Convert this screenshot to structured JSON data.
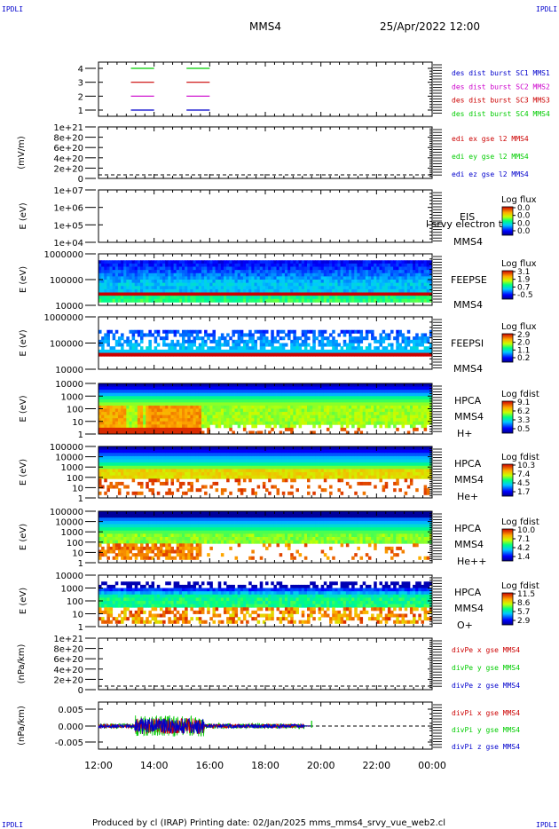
{
  "corner_labels": {
    "top_left": "IPDLI",
    "top_right": "IPDLI",
    "bottom_left": "IPDLI",
    "bottom_right": "IPDLI"
  },
  "header": {
    "title": "MMS4",
    "datetime": "25/Apr/2022 12:00"
  },
  "footer": {
    "text": "Produced by cl (IRAP)   Printing date: 02/Jan/2025   mms_mms4_srvy_vue_web2.cl"
  },
  "colors": {
    "blue": "#0000cc",
    "magenta": "#cc00cc",
    "red": "#cc0000",
    "green": "#00cc00",
    "black": "#000000"
  },
  "chart_data": [
    {
      "type": "line",
      "panel": "burst",
      "yticks": [
        "1",
        "2",
        "3",
        "4"
      ],
      "legend": [
        {
          "label": "des dist burst SC1 MMS1",
          "color": "#0000cc"
        },
        {
          "label": "des dist burst SC2 MMS2",
          "color": "#cc00cc"
        },
        {
          "label": "des dist burst SC3 MMS3",
          "color": "#cc0000"
        },
        {
          "label": "des dist burst SC4 MMS4",
          "color": "#00cc00"
        }
      ],
      "segments": [
        {
          "level": 1,
          "color": "#0000cc",
          "start": "13:10",
          "end": "14:00"
        },
        {
          "level": 1,
          "color": "#0000cc",
          "start": "15:10",
          "end": "16:00"
        },
        {
          "level": 2,
          "color": "#cc00cc",
          "start": "13:10",
          "end": "14:00"
        },
        {
          "level": 2,
          "color": "#cc00cc",
          "start": "15:10",
          "end": "16:00"
        },
        {
          "level": 3,
          "color": "#cc0000",
          "start": "13:10",
          "end": "14:00"
        },
        {
          "level": 3,
          "color": "#cc0000",
          "start": "15:10",
          "end": "16:00"
        },
        {
          "level": 4,
          "color": "#00cc00",
          "start": "13:10",
          "end": "14:00"
        },
        {
          "level": 4,
          "color": "#00cc00",
          "start": "15:10",
          "end": "16:00"
        }
      ]
    },
    {
      "type": "line",
      "panel": "edi",
      "ylabel": "(mV/m)",
      "yticks": [
        "1e+21",
        "8e+20",
        "6e+20",
        "4e+20",
        "2e+20",
        "0"
      ],
      "legend": [
        {
          "label": "edi ex gse l2 MMS4",
          "color": "#cc0000"
        },
        {
          "label": "edi ey gse l2 MMS4",
          "color": "#00cc00"
        },
        {
          "label": "edi ez gse l2 MMS4",
          "color": "#0000cc"
        }
      ]
    },
    {
      "type": "heatmap",
      "panel": "eis",
      "ylabel": "E (eV)",
      "yticks": [
        "1e+07",
        "1e+06",
        "1e+05",
        "1e+04"
      ],
      "labels": [
        "EIS",
        "MMS4"
      ],
      "overlay_text": "l srvy electron to",
      "colorbar": {
        "title": "Log flux",
        "ticks": [
          "0.0",
          "0.0",
          "0.0",
          "0.0"
        ]
      }
    },
    {
      "type": "heatmap",
      "panel": "feepse",
      "ylabel": "E (eV)",
      "yticks": [
        "1000000",
        "100000",
        "10000"
      ],
      "labels": [
        "FEEPSE",
        "MMS4"
      ],
      "colorbar": {
        "title": "Log flux",
        "ticks": [
          "3.1",
          "1.9",
          "0.7",
          "-0.5"
        ]
      }
    },
    {
      "type": "heatmap",
      "panel": "feepsi",
      "ylabel": "E (eV)",
      "yticks": [
        "1000000",
        "100000",
        "10000"
      ],
      "labels": [
        "FEEPSI",
        "MMS4"
      ],
      "colorbar": {
        "title": "Log flux",
        "ticks": [
          "2.9",
          "2.0",
          "1.1",
          "0.2"
        ]
      }
    },
    {
      "type": "heatmap",
      "panel": "hpca_h",
      "ylabel": "E (eV)",
      "yticks": [
        "10000",
        "1000",
        "100",
        "10",
        "1"
      ],
      "labels": [
        "HPCA",
        "MMS4",
        "H+"
      ],
      "colorbar": {
        "title": "Log fdist",
        "ticks": [
          "9.1",
          "6.2",
          "3.3",
          "0.5"
        ]
      }
    },
    {
      "type": "heatmap",
      "panel": "hpca_he",
      "ylabel": "E (eV)",
      "yticks": [
        "100000",
        "10000",
        "1000",
        "100",
        "10",
        "1"
      ],
      "labels": [
        "HPCA",
        "MMS4",
        "He+"
      ],
      "colorbar": {
        "title": "Log fdist",
        "ticks": [
          "10.3",
          "7.4",
          "4.5",
          "1.7"
        ]
      }
    },
    {
      "type": "heatmap",
      "panel": "hpca_hepp",
      "ylabel": "E (eV)",
      "yticks": [
        "100000",
        "10000",
        "1000",
        "100",
        "10",
        "1"
      ],
      "labels": [
        "HPCA",
        "MMS4",
        "He++"
      ],
      "colorbar": {
        "title": "Log fdist",
        "ticks": [
          "10.0",
          "7.1",
          "4.2",
          "1.4"
        ]
      }
    },
    {
      "type": "heatmap",
      "panel": "hpca_o",
      "ylabel": "E (eV)",
      "yticks": [
        "10000",
        "1000",
        "100",
        "10",
        "1"
      ],
      "labels": [
        "HPCA",
        "MMS4",
        "O+"
      ],
      "colorbar": {
        "title": "Log fdist",
        "ticks": [
          "11.5",
          "8.6",
          "5.7",
          "2.9"
        ]
      }
    },
    {
      "type": "line",
      "panel": "divpe",
      "ylabel": "(nPa/km)",
      "yticks": [
        "1e+21",
        "8e+20",
        "6e+20",
        "4e+20",
        "2e+20",
        "0"
      ],
      "legend": [
        {
          "label": "divPe x gse MMS4",
          "color": "#cc0000"
        },
        {
          "label": "divPe y gse MMS4",
          "color": "#00cc00"
        },
        {
          "label": "divPe z gse MMS4",
          "color": "#0000cc"
        }
      ]
    },
    {
      "type": "line",
      "panel": "divpi",
      "ylabel": "(nPa/km)",
      "yticks": [
        "0.005",
        "0.000",
        "-0.005"
      ],
      "ylim": [
        -0.008,
        0.008
      ],
      "data_end": "19:40",
      "legend": [
        {
          "label": "divPi x gse MMS4",
          "color": "#cc0000"
        },
        {
          "label": "divPi y gse MMS4",
          "color": "#00cc00"
        },
        {
          "label": "divPi z gse MMS4",
          "color": "#0000cc"
        }
      ]
    }
  ],
  "x_axis": {
    "ticks": [
      "12:00",
      "14:00",
      "16:00",
      "18:00",
      "20:00",
      "22:00",
      "00:00"
    ]
  }
}
